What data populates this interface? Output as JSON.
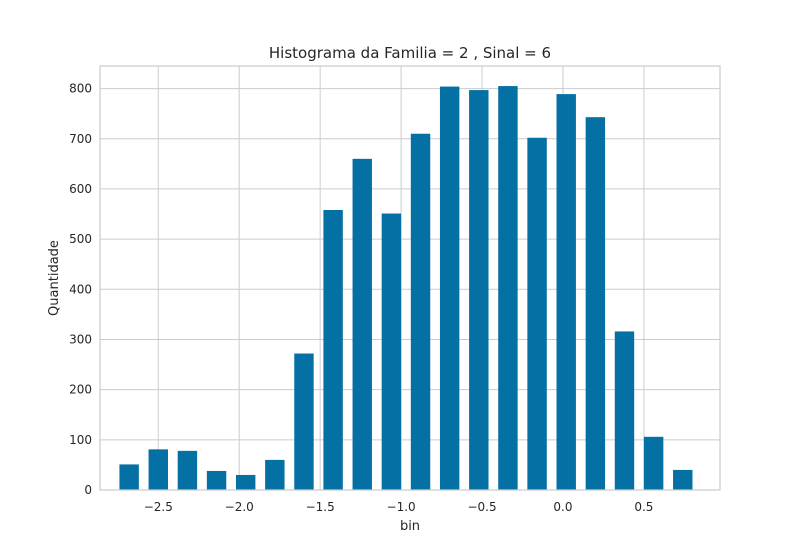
{
  "chart_data": {
    "type": "bar",
    "title": "Histograma da Familia = 2 , Sinal = 6",
    "xlabel": "bin",
    "ylabel": "Quantidade",
    "xlim": [
      -2.86,
      0.97
    ],
    "ylim": [
      0,
      845
    ],
    "bar_width": 0.12,
    "grid": true,
    "x_ticks": [
      {
        "value": -2.5,
        "label": "−2.5"
      },
      {
        "value": -2.0,
        "label": "−2.0"
      },
      {
        "value": -1.5,
        "label": "−1.5"
      },
      {
        "value": -1.0,
        "label": "−1.0"
      },
      {
        "value": -0.5,
        "label": "−0.5"
      },
      {
        "value": 0.0,
        "label": "0.0"
      },
      {
        "value": 0.5,
        "label": "0.5"
      }
    ],
    "y_ticks": [
      {
        "value": 0,
        "label": "0"
      },
      {
        "value": 100,
        "label": "100"
      },
      {
        "value": 200,
        "label": "200"
      },
      {
        "value": 300,
        "label": "300"
      },
      {
        "value": 400,
        "label": "400"
      },
      {
        "value": 500,
        "label": "500"
      },
      {
        "value": 600,
        "label": "600"
      },
      {
        "value": 700,
        "label": "700"
      },
      {
        "value": 800,
        "label": "800"
      }
    ],
    "x": [
      -2.68,
      -2.5,
      -2.32,
      -2.14,
      -1.96,
      -1.78,
      -1.6,
      -1.42,
      -1.24,
      -1.06,
      -0.88,
      -0.7,
      -0.52,
      -0.34,
      -0.16,
      0.02,
      0.2,
      0.38,
      0.56,
      0.74
    ],
    "values": [
      51,
      81,
      78,
      38,
      30,
      60,
      272,
      558,
      660,
      551,
      710,
      804,
      797,
      805,
      702,
      789,
      743,
      316,
      106,
      40
    ],
    "color": "#0570a4"
  }
}
